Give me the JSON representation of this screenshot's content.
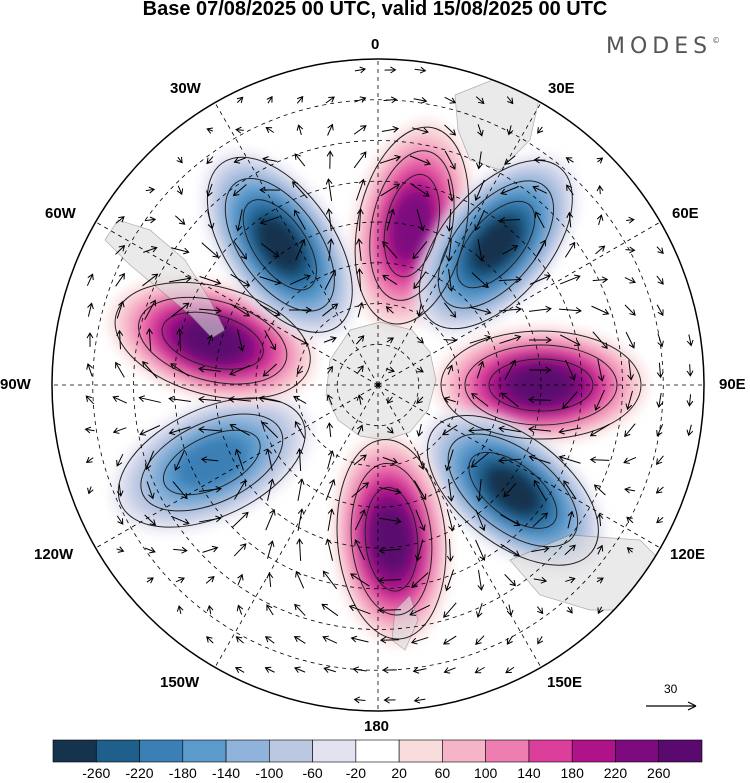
{
  "title": "Base 07/08/2025 00 UTC, valid 15/08/2025 00 UTC",
  "brand": {
    "text": "MODES",
    "mark": "©"
  },
  "map": {
    "projection": "south-polar-stereographic",
    "longitude_labels": {
      "lon_0": "0",
      "lon_30e": "30E",
      "lon_60e": "60E",
      "lon_90e": "90E",
      "lon_120e": "120E",
      "lon_150e": "150E",
      "lon_180": "180",
      "lon_150w": "150W",
      "lon_120w": "120W",
      "lon_90w": "90W",
      "lon_60w": "60W",
      "lon_30w": "30W"
    },
    "reference_vector": {
      "label": "30",
      "icon": "arrow-right-icon"
    },
    "anomaly_centers": [
      {
        "sign": "positive",
        "value": 220,
        "lon": 12,
        "lat": -50
      },
      {
        "sign": "negative",
        "value": -260,
        "lon": 40,
        "lat": -45
      },
      {
        "sign": "positive",
        "value": 260,
        "lon": 90,
        "lat": -50
      },
      {
        "sign": "negative",
        "value": -260,
        "lon": 128,
        "lat": -48
      },
      {
        "sign": "positive",
        "value": 260,
        "lon": 175,
        "lat": -52
      },
      {
        "sign": "negative",
        "value": -180,
        "lon": -115,
        "lat": -45
      },
      {
        "sign": "positive",
        "value": 260,
        "lon": -75,
        "lat": -48
      },
      {
        "sign": "negative",
        "value": -260,
        "lon": -35,
        "lat": -48
      }
    ],
    "colors": {
      "land": "#e6e6e6",
      "ocean": "#ffffff",
      "grid": "#000000"
    }
  },
  "colorbar": {
    "ticks": [
      "-260",
      "-220",
      "-180",
      "-140",
      "-100",
      "-60",
      "-20",
      "20",
      "60",
      "100",
      "140",
      "180",
      "220",
      "260"
    ],
    "colors": [
      "#16334d",
      "#1f5f8b",
      "#3a7fb5",
      "#5b9bcc",
      "#8fb3da",
      "#bcc8e2",
      "#e2e2f1",
      "#ffffff",
      "#f9dcdc",
      "#f6b4c8",
      "#ee7eb2",
      "#dc3f9b",
      "#b0128a",
      "#7d0b7f",
      "#5a0a6e"
    ]
  }
}
